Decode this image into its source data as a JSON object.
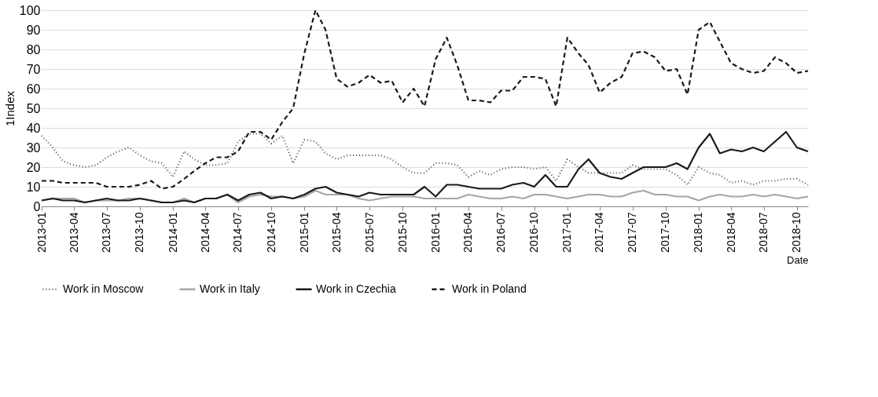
{
  "chart_data": {
    "type": "line",
    "xlabel": "Date",
    "ylabel": "1Index",
    "x": [
      "2013-01",
      "2013-02",
      "2013-03",
      "2013-04",
      "2013-05",
      "2013-06",
      "2013-07",
      "2013-08",
      "2013-09",
      "2013-10",
      "2013-11",
      "2013-12",
      "2014-01",
      "2014-02",
      "2014-03",
      "2014-04",
      "2014-05",
      "2014-06",
      "2014-07",
      "2014-08",
      "2014-09",
      "2014-10",
      "2014-11",
      "2014-12",
      "2015-01",
      "2015-02",
      "2015-03",
      "2015-04",
      "2015-05",
      "2015-06",
      "2015-07",
      "2015-08",
      "2015-09",
      "2015-10",
      "2015-11",
      "2015-12",
      "2016-01",
      "2016-02",
      "2016-03",
      "2016-04",
      "2016-05",
      "2016-06",
      "2016-07",
      "2016-08",
      "2016-09",
      "2016-10",
      "2016-11",
      "2016-12",
      "2017-01",
      "2017-02",
      "2017-03",
      "2017-04",
      "2017-05",
      "2017-06",
      "2017-07",
      "2017-08",
      "2017-09",
      "2017-10",
      "2017-11",
      "2017-12",
      "2018-01",
      "2018-02",
      "2018-03",
      "2018-04",
      "2018-05",
      "2018-06",
      "2018-07",
      "2018-08",
      "2018-09",
      "2018-10",
      "2018-11"
    ],
    "series": [
      {
        "name": "Work in Moscow",
        "color": "#555555",
        "line_style": "dotted",
        "values": [
          36,
          30,
          23,
          21,
          20,
          21,
          25,
          28,
          30,
          26,
          23,
          22,
          15,
          28,
          24,
          21,
          21,
          22,
          33,
          37,
          37,
          32,
          36,
          22,
          34,
          33,
          27,
          24,
          26,
          26,
          26,
          26,
          24,
          20,
          17,
          17,
          22,
          22,
          21,
          15,
          18,
          16,
          19,
          20,
          20,
          19,
          20,
          13,
          24,
          20,
          17,
          17,
          17,
          17,
          21,
          19,
          19,
          19,
          16,
          11,
          20,
          17,
          16,
          12,
          13,
          11,
          13,
          13,
          14,
          14,
          11
        ]
      },
      {
        "name": "Work in Italy",
        "color": "#a6a6a6",
        "line_style": "solid",
        "values": [
          3,
          4,
          4,
          4,
          2,
          3,
          3,
          3,
          4,
          4,
          3,
          2,
          2,
          4,
          2,
          4,
          4,
          6,
          2,
          5,
          6,
          5,
          5,
          4,
          5,
          8,
          6,
          6,
          6,
          4,
          3,
          4,
          5,
          5,
          5,
          4,
          4,
          4,
          4,
          6,
          5,
          4,
          4,
          5,
          4,
          6,
          6,
          5,
          4,
          5,
          6,
          6,
          5,
          5,
          7,
          8,
          6,
          6,
          5,
          5,
          3,
          5,
          6,
          5,
          5,
          6,
          5,
          6,
          5,
          4,
          5
        ]
      },
      {
        "name": "Work in Czechia",
        "color": "#1a1a1a",
        "line_style": "solid",
        "values": [
          3,
          4,
          3,
          3,
          2,
          3,
          4,
          3,
          3,
          4,
          3,
          2,
          2,
          3,
          2,
          4,
          4,
          6,
          3,
          6,
          7,
          4,
          5,
          4,
          6,
          9,
          10,
          7,
          6,
          5,
          7,
          6,
          6,
          6,
          6,
          10,
          5,
          11,
          11,
          10,
          9,
          9,
          9,
          11,
          12,
          10,
          16,
          10,
          10,
          19,
          24,
          17,
          15,
          14,
          17,
          20,
          20,
          20,
          22,
          19,
          30,
          37,
          27,
          29,
          28,
          30,
          28,
          33,
          38,
          30,
          28
        ]
      },
      {
        "name": "Work in Poland",
        "color": "#1a1a1a",
        "line_style": "dashed",
        "values": [
          13,
          13,
          12,
          12,
          12,
          12,
          10,
          10,
          10,
          11,
          13,
          9,
          10,
          14,
          18,
          22,
          25,
          25,
          28,
          38,
          38,
          34,
          43,
          50,
          78,
          100,
          90,
          65,
          61,
          63,
          67,
          63,
          64,
          53,
          60,
          51,
          75,
          86,
          72,
          54,
          54,
          53,
          59,
          59,
          66,
          66,
          65,
          51,
          86,
          78,
          72,
          58,
          63,
          66,
          78,
          79,
          76,
          69,
          70,
          57,
          90,
          94,
          84,
          73,
          70,
          68,
          69,
          76,
          73,
          68,
          69
        ]
      }
    ],
    "xlim": [
      "2013-01",
      "2018-11"
    ],
    "xticks": [
      "2013-01",
      "2013-04",
      "2013-07",
      "2013-10",
      "2014-01",
      "2014-04",
      "2014-07",
      "2014-10",
      "2015-01",
      "2015-04",
      "2015-07",
      "2015-10",
      "2016-01",
      "2016-04",
      "2016-07",
      "2016-10",
      "2017-01",
      "2017-04",
      "2017-07",
      "2017-10",
      "2018-01",
      "2018-04",
      "2018-07",
      "2018-10"
    ],
    "ylim": [
      0,
      100
    ],
    "yticks": [
      0,
      10,
      20,
      30,
      40,
      50,
      60,
      70,
      80,
      90,
      100
    ],
    "grid": "y",
    "legend": "bottom"
  }
}
